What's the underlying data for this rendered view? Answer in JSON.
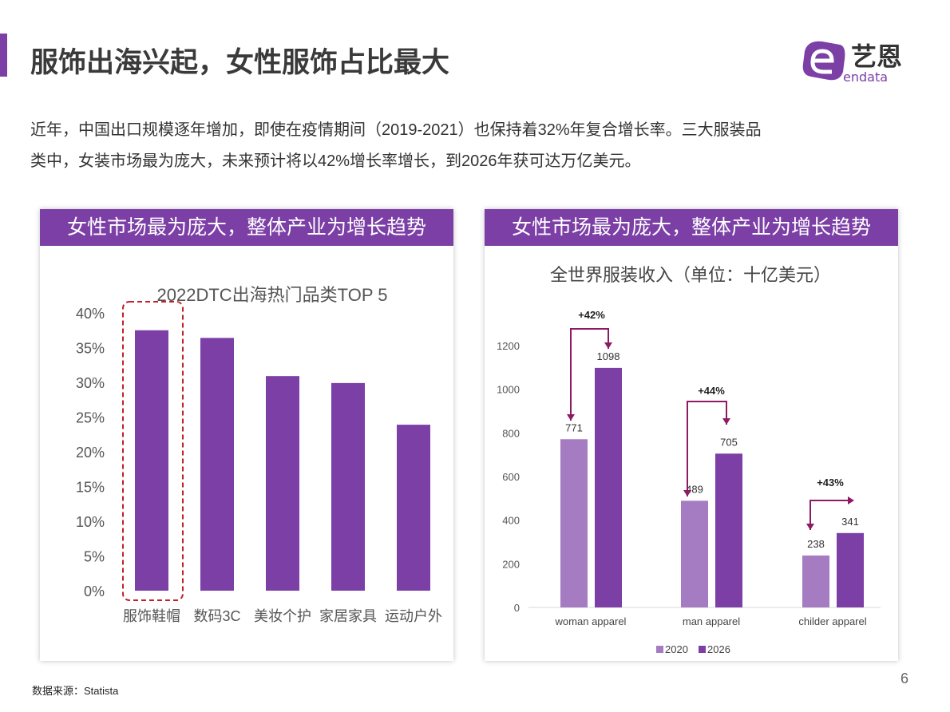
{
  "title": "服饰出海兴起，女性服饰占比最大",
  "logo": {
    "brand_cn": "艺恩",
    "brand_en": "endata",
    "color": "#7b3fa6"
  },
  "intro": [
    "近年，中国出口规模逐年增加，即使在疫情期间（2019-2021）也保持着32%年复合增长率。三大服装品",
    "类中，女装市场最为庞大，未来预计将以42%增长率增长，到2026年获可达万亿美元。"
  ],
  "left_panel": {
    "header": "女性市场最为庞大，整体产业为增长趋势"
  },
  "right_panel": {
    "header": "女性市场最为庞大，整体产业为增长趋势"
  },
  "source": "数据来源：Statista",
  "page_number": "6",
  "colors": {
    "accent": "#7b3fa6",
    "bar_light": "#a57cc1",
    "bar_dark": "#7b3fa6",
    "arrow": "#8e1a64",
    "highlight_box": "#c0202a"
  },
  "chart_data": [
    {
      "type": "bar",
      "title": "2022DTC出海热门品类TOP 5",
      "categories": [
        "服饰鞋帽",
        "数码3C",
        "美妆个护",
        "家居家具",
        "运动户外"
      ],
      "values": [
        37.5,
        36.4,
        30.9,
        29.9,
        23.9
      ],
      "yticks": [
        "0%",
        "5%",
        "10%",
        "15%",
        "20%",
        "25%",
        "30%",
        "35%",
        "40%"
      ],
      "ylim": [
        0,
        40
      ],
      "highlight_category": "服饰鞋帽",
      "grid": false
    },
    {
      "type": "bar",
      "title": "全世界服装收入（单位：十亿美元）",
      "categories": [
        "woman apparel",
        "man apparel",
        "childer apparel"
      ],
      "series": [
        {
          "name": "2020",
          "values": [
            771,
            489,
            238
          ]
        },
        {
          "name": "2026",
          "values": [
            1098,
            705,
            341
          ]
        }
      ],
      "annotations": [
        "+42%",
        "+44%",
        "+43%"
      ],
      "yticks": [
        "0",
        "200",
        "400",
        "600",
        "800",
        "1000",
        "1200"
      ],
      "ylim": [
        0,
        1200
      ],
      "legend": "bottom",
      "grid": false
    }
  ]
}
